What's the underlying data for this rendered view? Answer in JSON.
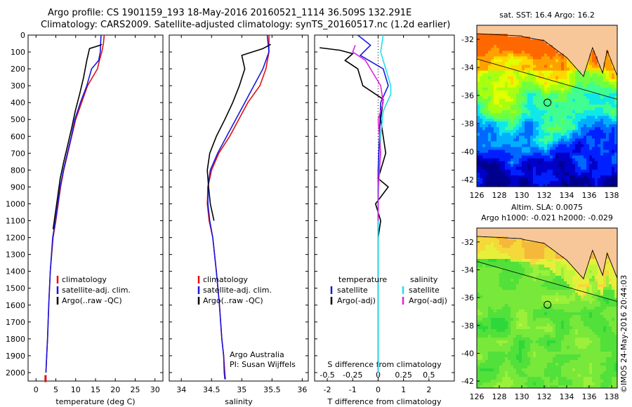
{
  "title": {
    "line1": "Argo profile: CS 1901159_193 18-May-2016 20160521_1114 36.509S 132.291E",
    "line2": "Climatology: CARS2009. Satellite-adjusted climatology: synTS_20160517.nc (1.2d earlier)"
  },
  "credit": "©IMOS 24-May-2016 20:44:03",
  "colors": {
    "climatology": "#e01010",
    "satellite": "#1818e0",
    "argo": "#000000",
    "satellite_s": "#20e0e8",
    "argo_s": "#e020e0",
    "land": "#f7c79a"
  },
  "chart_data": [
    {
      "type": "line",
      "id": "temperature",
      "xlabel": "temperature (deg C)",
      "ylabel": "",
      "xlim": [
        -2,
        32
      ],
      "ylim": [
        2050,
        0
      ],
      "xticks": [
        0,
        5,
        10,
        15,
        20,
        25,
        30
      ],
      "yticks": [
        0,
        100,
        200,
        300,
        400,
        500,
        600,
        700,
        800,
        900,
        1000,
        1100,
        1200,
        1300,
        1400,
        1500,
        1600,
        1700,
        1800,
        1900,
        2000
      ],
      "legend": [
        "climatology",
        "satellite-adj. clim.",
        "Argo(..raw -QC)"
      ],
      "series": [
        {
          "name": "climatology",
          "color": "climatology",
          "x": [
            17.2,
            17.0,
            16.6,
            16.0,
            15.5,
            13.0,
            11.5,
            10.0,
            9.0,
            8.0,
            7.0,
            6.2,
            5.6,
            5.0,
            4.3,
            3.6,
            3.2,
            2.9,
            2.7,
            2.5
          ],
          "y": [
            0,
            50,
            100,
            150,
            200,
            300,
            400,
            500,
            600,
            700,
            800,
            900,
            1000,
            1100,
            1200,
            1400,
            1600,
            1800,
            1900,
            2000
          ]
        },
        {
          "name": "satellite-adj. clim.",
          "color": "satellite",
          "x": [
            16.4,
            16.3,
            16.2,
            15.8,
            14.0,
            12.8,
            11.2,
            9.8,
            8.9,
            7.9,
            6.9,
            6.1,
            5.5,
            4.9,
            4.2,
            3.6,
            3.2,
            2.9,
            2.7,
            2.5
          ],
          "y": [
            0,
            50,
            100,
            150,
            200,
            300,
            400,
            500,
            600,
            700,
            800,
            900,
            1000,
            1100,
            1200,
            1400,
            1600,
            1800,
            1900,
            2000
          ]
        },
        {
          "name": "Argo(..raw -QC)",
          "color": "argo",
          "x": [
            16.6,
            16.2,
            13.5,
            12.8,
            12.0,
            11.0,
            9.9,
            9.0,
            8.0,
            7.0,
            6.1,
            5.5,
            4.9,
            4.3
          ],
          "y": [
            55,
            60,
            80,
            150,
            250,
            350,
            450,
            550,
            650,
            750,
            850,
            950,
            1050,
            1150
          ]
        }
      ],
      "markers": [
        {
          "x": 2.4,
          "y": 2040,
          "color": "climatology"
        }
      ]
    },
    {
      "type": "line",
      "id": "salinity",
      "xlabel": "salinity",
      "xlim": [
        33.8,
        36.1
      ],
      "ylim": [
        2050,
        0
      ],
      "xticks": [
        34,
        34.5,
        35,
        35.5,
        36
      ],
      "legend": [
        "climatology",
        "satellite-adj. clim.",
        "Argo(..raw -QC)"
      ],
      "annotation": [
        "Argo Australia",
        "PI: Susan Wijffels"
      ],
      "series": [
        {
          "name": "climatology",
          "color": "climatology",
          "x": [
            35.45,
            35.45,
            35.4,
            35.3,
            35.1,
            34.95,
            34.8,
            34.62,
            34.5,
            34.44,
            34.43,
            34.46,
            34.52,
            34.58,
            34.63,
            34.67,
            34.7,
            34.72,
            34.73
          ],
          "y": [
            0,
            100,
            200,
            300,
            400,
            500,
            600,
            700,
            800,
            900,
            1000,
            1100,
            1200,
            1400,
            1600,
            1800,
            1900,
            2000,
            2040
          ]
        },
        {
          "name": "satellite-adj. clim.",
          "color": "satellite",
          "x": [
            35.42,
            35.45,
            35.35,
            35.2,
            35.05,
            34.9,
            34.75,
            34.6,
            34.48,
            34.44,
            34.44,
            34.47,
            34.52,
            34.58,
            34.63,
            34.67,
            34.7,
            34.71,
            34.72
          ],
          "y": [
            0,
            100,
            200,
            300,
            400,
            500,
            600,
            700,
            800,
            900,
            1000,
            1100,
            1200,
            1400,
            1600,
            1800,
            1900,
            2000,
            2040
          ]
        },
        {
          "name": "Argo(..raw -QC)",
          "color": "argo",
          "x": [
            35.48,
            35.35,
            35.0,
            35.05,
            34.96,
            34.85,
            34.72,
            34.58,
            34.47,
            34.43,
            34.45,
            34.48,
            34.54
          ],
          "y": [
            55,
            80,
            120,
            200,
            300,
            400,
            500,
            600,
            700,
            800,
            900,
            1000,
            1100
          ]
        }
      ]
    },
    {
      "type": "line",
      "id": "differences",
      "xlabel": "T difference from climatology",
      "x2label": "S difference from climatology",
      "xlim": [
        -2.5,
        3.0
      ],
      "ylim": [
        2050,
        0
      ],
      "xticks": [
        -2,
        -1,
        0,
        1,
        2
      ],
      "xtick_labels": [
        "-2",
        "-1",
        "0",
        "1",
        "2"
      ],
      "x2ticks": [
        -2,
        -1,
        0,
        1,
        2
      ],
      "x2tick_labels": [
        "-0.5",
        "-0.25",
        "0",
        "0.25",
        "0.5"
      ],
      "legend_t": [
        "temperature",
        "satellite",
        "Argo(-adj)"
      ],
      "legend_s": [
        "salinity",
        "satellite",
        "Argo(-adj)"
      ],
      "series": [
        {
          "name": "T satellite",
          "color": "satellite",
          "x": [
            -0.8,
            -0.3,
            -0.7,
            0.2,
            0.4,
            0.1,
            0.05,
            0.0,
            0.0,
            0.0,
            0.0
          ],
          "y": [
            0,
            60,
            120,
            200,
            300,
            400,
            600,
            800,
            1000,
            1400,
            2000
          ]
        },
        {
          "name": "T Argo(-adj)",
          "color": "argo",
          "x": [
            -2.3,
            -1.5,
            -1.0,
            -1.3,
            -0.8,
            -0.6,
            0.2,
            0.1,
            0.3,
            0.0,
            0.4,
            -0.1,
            0.1,
            0.0
          ],
          "y": [
            75,
            90,
            110,
            150,
            200,
            300,
            380,
            500,
            700,
            850,
            900,
            1000,
            1100,
            1200
          ]
        },
        {
          "name": "S satellite",
          "color": "satellite_s",
          "x": [
            0.2,
            0.1,
            0.3,
            0.5,
            0.5,
            0.2,
            0.1,
            0.05,
            0.0,
            0.0,
            0.0
          ],
          "y": [
            0,
            100,
            200,
            300,
            350,
            450,
            600,
            800,
            1000,
            1400,
            2000
          ]
        },
        {
          "name": "S Argo(-adj)",
          "color": "argo_s",
          "x": [
            -0.9,
            -1.0,
            -0.5,
            -0.3,
            0.1,
            0.2,
            0.0,
            0.1,
            0.0,
            0.0
          ],
          "y": [
            60,
            100,
            150,
            200,
            300,
            400,
            500,
            700,
            900,
            1100
          ]
        }
      ]
    },
    {
      "type": "heatmap",
      "id": "sst_map",
      "title": "sat. SST: 16.4 Argo: 16.2",
      "xlim": [
        126,
        138.5
      ],
      "ylim": [
        -42.5,
        -31
      ],
      "xticks": [
        126,
        128,
        130,
        132,
        134,
        136,
        138
      ],
      "yticks": [
        -32,
        -34,
        -36,
        -38,
        -40,
        -42
      ],
      "argo_position": {
        "lon": 132.291,
        "lat": -36.509
      }
    },
    {
      "type": "heatmap",
      "id": "sla_map",
      "title": "Altim. SLA: 0.0075",
      "subtitle": "Argo h1000: -0.021 h2000: -0.029",
      "xlim": [
        126,
        138.5
      ],
      "ylim": [
        -42.5,
        -31
      ],
      "xticks": [
        126,
        128,
        130,
        132,
        134,
        136,
        138
      ],
      "yticks": [
        -32,
        -34,
        -36,
        -38,
        -40,
        -42
      ],
      "argo_position": {
        "lon": 132.291,
        "lat": -36.509
      }
    }
  ]
}
